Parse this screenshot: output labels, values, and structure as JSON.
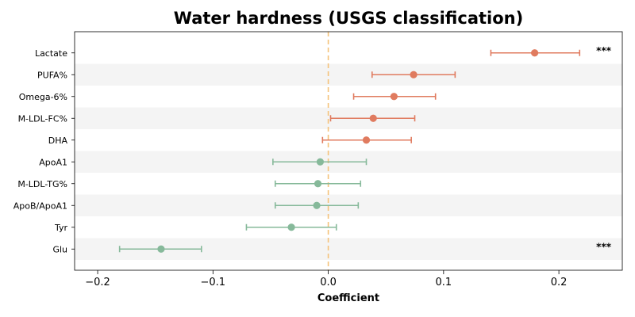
{
  "chart_data": {
    "type": "forest",
    "title": "Water hardness (USGS classification)",
    "xlabel": "Coefficient",
    "xlim": [
      -0.22,
      0.255
    ],
    "xticks": [
      -0.2,
      -0.1,
      0.0,
      0.1,
      0.2
    ],
    "xtick_labels": [
      "−0.2",
      "−0.1",
      "0.0",
      "0.1",
      "0.2"
    ],
    "reference_line": 0.0,
    "colors": {
      "positive": "#e07b5f",
      "negative": "#86b99a",
      "reference": "#f5c27a",
      "band": "#f4f4f4"
    },
    "rows": [
      {
        "label": "Lactate",
        "estimate": 0.179,
        "ci_low": 0.141,
        "ci_high": 0.218,
        "significance": "***"
      },
      {
        "label": "PUFA%",
        "estimate": 0.074,
        "ci_low": 0.038,
        "ci_high": 0.11,
        "significance": ""
      },
      {
        "label": "Omega-6%",
        "estimate": 0.057,
        "ci_low": 0.022,
        "ci_high": 0.093,
        "significance": ""
      },
      {
        "label": "M-LDL-FC%",
        "estimate": 0.039,
        "ci_low": 0.002,
        "ci_high": 0.075,
        "significance": ""
      },
      {
        "label": "DHA",
        "estimate": 0.033,
        "ci_low": -0.005,
        "ci_high": 0.072,
        "significance": ""
      },
      {
        "label": "ApoA1",
        "estimate": -0.007,
        "ci_low": -0.048,
        "ci_high": 0.033,
        "significance": ""
      },
      {
        "label": "M-LDL-TG%",
        "estimate": -0.009,
        "ci_low": -0.046,
        "ci_high": 0.028,
        "significance": ""
      },
      {
        "label": "ApoB/ApoA1",
        "estimate": -0.01,
        "ci_low": -0.046,
        "ci_high": 0.026,
        "significance": ""
      },
      {
        "label": "Tyr",
        "estimate": -0.032,
        "ci_low": -0.071,
        "ci_high": 0.007,
        "significance": ""
      },
      {
        "label": "Glu",
        "estimate": -0.145,
        "ci_low": -0.181,
        "ci_high": -0.11,
        "significance": "***"
      }
    ]
  }
}
